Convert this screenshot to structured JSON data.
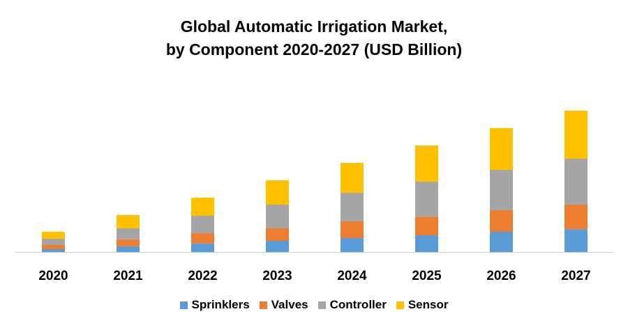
{
  "chart_data": {
    "type": "bar",
    "stacked": true,
    "title": "Global Automatic Irrigation Market, by Component 2020-2027 (USD Billion)",
    "title_lines": [
      "Global Automatic Irrigation Market,",
      "by Component 2020-2027 (USD Billion)"
    ],
    "categories": [
      "2020",
      "2021",
      "2022",
      "2023",
      "2024",
      "2025",
      "2026",
      "2027"
    ],
    "series": [
      {
        "name": "Sprinklers",
        "color": "#5B9BD5",
        "values": [
          4,
          8.3,
          12.3,
          16,
          20,
          24,
          29,
          32.7
        ]
      },
      {
        "name": "Valves",
        "color": "#ED7D31",
        "values": [
          6,
          10,
          14.7,
          18,
          24,
          26.7,
          31,
          35.3
        ]
      },
      {
        "name": "Controller",
        "color": "#A5A5A5",
        "values": [
          9,
          15.7,
          25,
          34,
          41,
          50.3,
          58,
          66
        ]
      },
      {
        "name": "Sensor",
        "color": "#FFC000",
        "values": [
          10,
          19,
          26,
          35,
          43,
          52,
          60,
          69
        ]
      }
    ],
    "ylim": [
      0,
      210
    ],
    "y_axis_shown": false,
    "grid": false,
    "legend_position": "bottom"
  }
}
